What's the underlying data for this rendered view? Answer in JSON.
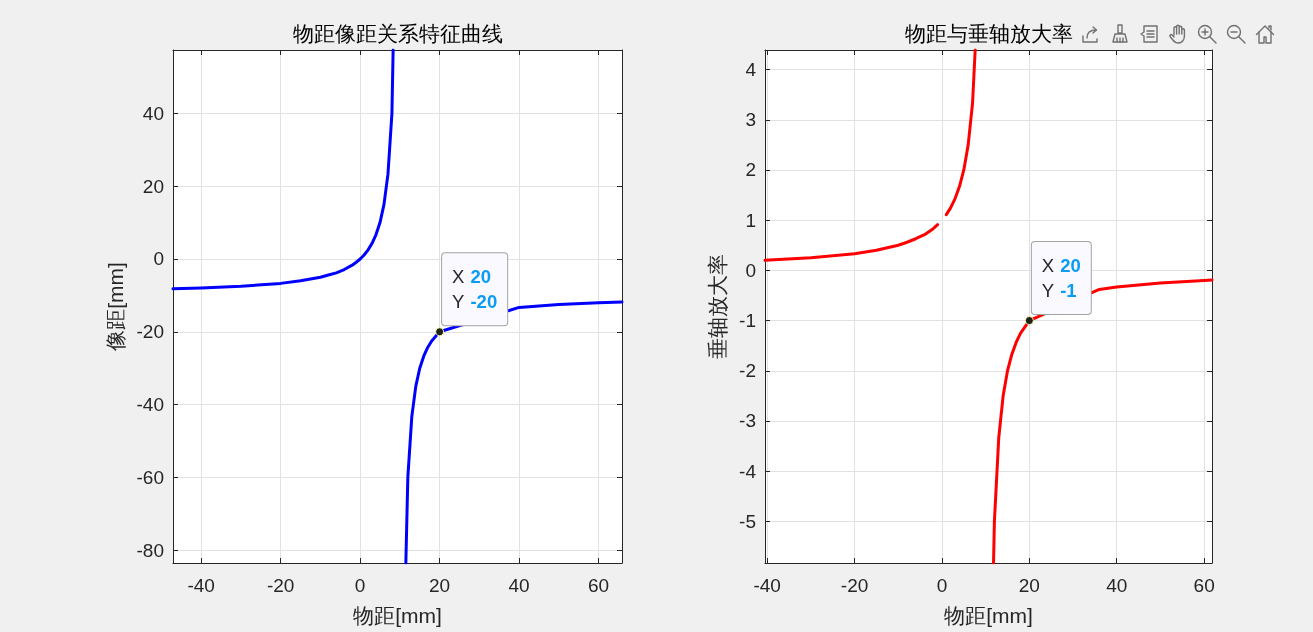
{
  "chart_data": [
    {
      "type": "line",
      "title": "物距像距关系特征曲线",
      "xlabel": "物距[mm]",
      "ylabel": "像距[mm]",
      "series": [
        {
          "color": "#0000ff",
          "x": [
            -47.1,
            -40,
            -30,
            -20,
            -15,
            -10,
            -8,
            -6,
            -4,
            -2,
            -1,
            0,
            1,
            2,
            3,
            4,
            5,
            6,
            7,
            8,
            8.3,
            10,
            11.5,
            12,
            13,
            14,
            15,
            16,
            17,
            18,
            20,
            40,
            50,
            60,
            65.9
          ],
          "values": [
            -8.2,
            -8,
            -7.5,
            -6.7,
            -6,
            -5,
            -4.4,
            -3.8,
            -2.9,
            -1.7,
            -0.9,
            0,
            1.1,
            2.5,
            4.3,
            6.7,
            10,
            15,
            23.3,
            40,
            57.4,
            null,
            -83.5,
            -60,
            -43.3,
            -35,
            -30,
            -26.7,
            -24.3,
            -22.5,
            -20,
            -13.3,
            -12.5,
            -12,
            -11.8
          ]
        }
      ],
      "xlim": [
        -47.1,
        65.9
      ],
      "xticks": [
        -40,
        -20,
        0,
        20,
        40,
        60
      ],
      "ylim": [
        -83.5,
        57.4
      ],
      "yticks": [
        -80,
        -60,
        -40,
        -20,
        0,
        20,
        40
      ],
      "grid": true,
      "marker": "none",
      "annotations": [
        {
          "text": "X 20\nY -20",
          "x": 20,
          "y": -20
        }
      ]
    },
    {
      "type": "line",
      "title": "物距与垂轴放大率",
      "xlabel": "物距[mm]",
      "ylabel": "垂轴放大率",
      "series": [
        {
          "color": "#ff0000",
          "x": [
            -40.5,
            -30,
            -20,
            -15,
            -10,
            -8,
            -6,
            -4,
            -2,
            -1,
            0,
            1,
            2,
            3,
            4,
            5,
            6,
            7,
            7.6,
            10,
            11.8,
            12,
            13,
            14,
            15,
            16,
            17,
            18,
            20,
            36,
            40,
            50,
            60,
            61.8
          ],
          "values": [
            0.2,
            0.25,
            0.33,
            0.4,
            0.5,
            0.56,
            0.63,
            0.71,
            0.83,
            0.91,
            null,
            1.11,
            1.25,
            1.43,
            1.67,
            2,
            2.5,
            3.33,
            4.39,
            null,
            -5.83,
            -5,
            -3.33,
            -2.5,
            -2,
            -1.67,
            -1.43,
            -1.25,
            -1,
            -0.38,
            -0.33,
            -0.25,
            -0.2,
            -0.19
          ]
        }
      ],
      "xlim": [
        -40.5,
        61.8
      ],
      "xticks": [
        -40,
        -20,
        0,
        20,
        40,
        60
      ],
      "ylim": [
        -5.83,
        4.39
      ],
      "yticks": [
        -5,
        -4,
        -3,
        -2,
        -1,
        0,
        1,
        2,
        3,
        4
      ],
      "grid": true,
      "marker": "none",
      "annotations": [
        {
          "text": "X 20\nY -1",
          "x": 20,
          "y": -1
        }
      ]
    }
  ]
}
